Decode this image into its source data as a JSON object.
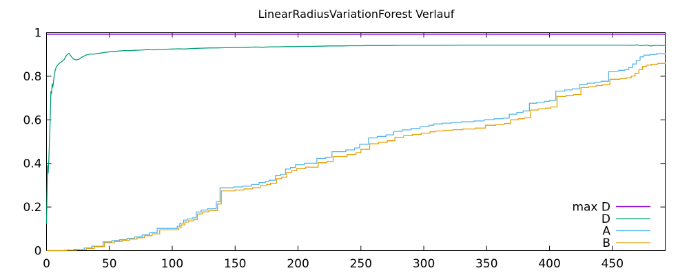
{
  "chart_data": {
    "type": "line",
    "title": "LinearRadiusVariationForest Verlauf",
    "xlabel": "",
    "ylabel": "",
    "xlim": [
      0,
      492
    ],
    "ylim": [
      0,
      1
    ],
    "xticks": [
      0,
      50,
      100,
      150,
      200,
      250,
      300,
      350,
      400,
      450
    ],
    "yticks": [
      0,
      0.2,
      0.4,
      0.6,
      0.8,
      1
    ],
    "grid": false,
    "background": "#ffffff",
    "axis_color": "#000000",
    "text_color": "#000000",
    "legend": {
      "position": "inside-bottom-right",
      "entries": [
        "max D",
        "D",
        "A",
        "B"
      ]
    },
    "series": [
      {
        "name": "max D",
        "color": "#9400d3",
        "style": "line",
        "points": [
          [
            0,
            0.993
          ],
          [
            492,
            0.993
          ]
        ]
      },
      {
        "name": "D",
        "color": "#009e73",
        "style": "line",
        "points": [
          [
            0,
            0.123
          ],
          [
            0.8,
            0.39
          ],
          [
            1.3,
            0.355
          ],
          [
            1.8,
            0.41
          ],
          [
            2.5,
            0.52
          ],
          [
            3,
            0.62
          ],
          [
            3.5,
            0.73
          ],
          [
            4,
            0.72
          ],
          [
            4.5,
            0.765
          ],
          [
            5,
            0.75
          ],
          [
            5.5,
            0.77
          ],
          [
            6,
            0.8
          ],
          [
            7,
            0.83
          ],
          [
            8,
            0.845
          ],
          [
            9,
            0.852
          ],
          [
            10,
            0.858
          ],
          [
            11,
            0.863
          ],
          [
            12,
            0.867
          ],
          [
            13,
            0.871
          ],
          [
            14,
            0.877
          ],
          [
            15,
            0.887
          ],
          [
            16,
            0.896
          ],
          [
            17,
            0.902
          ],
          [
            18,
            0.905
          ],
          [
            19,
            0.896
          ],
          [
            20,
            0.888
          ],
          [
            21,
            0.882
          ],
          [
            22,
            0.877
          ],
          [
            24,
            0.875
          ],
          [
            26,
            0.879
          ],
          [
            28,
            0.887
          ],
          [
            30,
            0.893
          ],
          [
            32,
            0.898
          ],
          [
            34,
            0.901
          ],
          [
            36,
            0.902
          ],
          [
            38,
            0.902
          ],
          [
            40,
            0.904
          ],
          [
            43,
            0.906
          ],
          [
            46,
            0.909
          ],
          [
            50,
            0.912
          ],
          [
            54,
            0.914
          ],
          [
            58,
            0.916
          ],
          [
            62,
            0.918
          ],
          [
            66,
            0.917
          ],
          [
            70,
            0.919
          ],
          [
            75,
            0.92
          ],
          [
            80,
            0.922
          ],
          [
            85,
            0.921
          ],
          [
            90,
            0.923
          ],
          [
            95,
            0.924
          ],
          [
            100,
            0.925
          ],
          [
            105,
            0.926
          ],
          [
            110,
            0.925
          ],
          [
            115,
            0.927
          ],
          [
            120,
            0.928
          ],
          [
            125,
            0.929
          ],
          [
            130,
            0.93
          ],
          [
            136,
            0.93
          ],
          [
            142,
            0.931
          ],
          [
            148,
            0.932
          ],
          [
            154,
            0.932
          ],
          [
            160,
            0.933
          ],
          [
            166,
            0.934
          ],
          [
            172,
            0.933
          ],
          [
            178,
            0.935
          ],
          [
            184,
            0.935
          ],
          [
            190,
            0.936
          ],
          [
            196,
            0.936
          ],
          [
            202,
            0.937
          ],
          [
            210,
            0.937
          ],
          [
            218,
            0.938
          ],
          [
            226,
            0.939
          ],
          [
            234,
            0.939
          ],
          [
            242,
            0.94
          ],
          [
            250,
            0.94
          ],
          [
            258,
            0.941
          ],
          [
            266,
            0.941
          ],
          [
            274,
            0.941
          ],
          [
            282,
            0.942
          ],
          [
            290,
            0.942
          ],
          [
            300,
            0.942
          ],
          [
            315,
            0.942
          ],
          [
            330,
            0.943
          ],
          [
            345,
            0.943
          ],
          [
            360,
            0.943
          ],
          [
            375,
            0.943
          ],
          [
            390,
            0.943
          ],
          [
            405,
            0.943
          ],
          [
            420,
            0.943
          ],
          [
            435,
            0.943
          ],
          [
            450,
            0.943
          ],
          [
            460,
            0.943
          ],
          [
            466,
            0.942
          ],
          [
            470,
            0.944
          ],
          [
            473,
            0.94
          ],
          [
            477,
            0.943
          ],
          [
            481,
            0.939
          ],
          [
            485,
            0.943
          ],
          [
            488,
            0.94
          ],
          [
            492,
            0.942
          ]
        ]
      },
      {
        "name": "A",
        "color": "#56b4e9",
        "style": "step",
        "points": [
          [
            0,
            0
          ],
          [
            14,
            0.002
          ],
          [
            22,
            0.006
          ],
          [
            30,
            0.012
          ],
          [
            36,
            0.02
          ],
          [
            45,
            0.04
          ],
          [
            52,
            0.046
          ],
          [
            58,
            0.05
          ],
          [
            64,
            0.056
          ],
          [
            70,
            0.063
          ],
          [
            76,
            0.072
          ],
          [
            82,
            0.082
          ],
          [
            88,
            0.102
          ],
          [
            104,
            0.112
          ],
          [
            106,
            0.126
          ],
          [
            109,
            0.14
          ],
          [
            112,
            0.145
          ],
          [
            116,
            0.15
          ],
          [
            119,
            0.177
          ],
          [
            123,
            0.186
          ],
          [
            128,
            0.192
          ],
          [
            135,
            0.224
          ],
          [
            138,
            0.288
          ],
          [
            149,
            0.292
          ],
          [
            156,
            0.296
          ],
          [
            163,
            0.303
          ],
          [
            169,
            0.312
          ],
          [
            174,
            0.317
          ],
          [
            177,
            0.323
          ],
          [
            182,
            0.344
          ],
          [
            186,
            0.35
          ],
          [
            190,
            0.374
          ],
          [
            194,
            0.381
          ],
          [
            198,
            0.394
          ],
          [
            205,
            0.401
          ],
          [
            215,
            0.423
          ],
          [
            222,
            0.428
          ],
          [
            227,
            0.454
          ],
          [
            238,
            0.462
          ],
          [
            245,
            0.471
          ],
          [
            249,
            0.488
          ],
          [
            256,
            0.517
          ],
          [
            263,
            0.524
          ],
          [
            270,
            0.531
          ],
          [
            276,
            0.547
          ],
          [
            283,
            0.554
          ],
          [
            290,
            0.561
          ],
          [
            297,
            0.568
          ],
          [
            304,
            0.575
          ],
          [
            308,
            0.581
          ],
          [
            315,
            0.585
          ],
          [
            322,
            0.588
          ],
          [
            330,
            0.591
          ],
          [
            340,
            0.595
          ],
          [
            348,
            0.601
          ],
          [
            356,
            0.605
          ],
          [
            363,
            0.608
          ],
          [
            368,
            0.626
          ],
          [
            374,
            0.634
          ],
          [
            379,
            0.641
          ],
          [
            384,
            0.676
          ],
          [
            390,
            0.681
          ],
          [
            396,
            0.685
          ],
          [
            400,
            0.689
          ],
          [
            405,
            0.732
          ],
          [
            412,
            0.737
          ],
          [
            418,
            0.742
          ],
          [
            424,
            0.763
          ],
          [
            430,
            0.768
          ],
          [
            436,
            0.773
          ],
          [
            441,
            0.777
          ],
          [
            447,
            0.823
          ],
          [
            455,
            0.827
          ],
          [
            460,
            0.831
          ],
          [
            463,
            0.84
          ],
          [
            466,
            0.856
          ],
          [
            469,
            0.873
          ],
          [
            472,
            0.889
          ],
          [
            475,
            0.897
          ],
          [
            480,
            0.9
          ],
          [
            485,
            0.903
          ],
          [
            492,
            0.906
          ]
        ]
      },
      {
        "name": "B",
        "color": "#e69f00",
        "style": "step",
        "points": [
          [
            0,
            0
          ],
          [
            16,
            0.002
          ],
          [
            24,
            0.005
          ],
          [
            32,
            0.01
          ],
          [
            38,
            0.018
          ],
          [
            46,
            0.036
          ],
          [
            54,
            0.042
          ],
          [
            60,
            0.047
          ],
          [
            66,
            0.053
          ],
          [
            72,
            0.059
          ],
          [
            78,
            0.068
          ],
          [
            84,
            0.077
          ],
          [
            90,
            0.095
          ],
          [
            105,
            0.104
          ],
          [
            107,
            0.118
          ],
          [
            110,
            0.131
          ],
          [
            113,
            0.137
          ],
          [
            117,
            0.142
          ],
          [
            120,
            0.168
          ],
          [
            124,
            0.178
          ],
          [
            129,
            0.184
          ],
          [
            136,
            0.214
          ],
          [
            139,
            0.274
          ],
          [
            150,
            0.278
          ],
          [
            157,
            0.283
          ],
          [
            164,
            0.289
          ],
          [
            170,
            0.298
          ],
          [
            175,
            0.303
          ],
          [
            178,
            0.309
          ],
          [
            183,
            0.33
          ],
          [
            187,
            0.337
          ],
          [
            191,
            0.359
          ],
          [
            195,
            0.367
          ],
          [
            199,
            0.376
          ],
          [
            206,
            0.383
          ],
          [
            216,
            0.403
          ],
          [
            223,
            0.409
          ],
          [
            228,
            0.432
          ],
          [
            239,
            0.441
          ],
          [
            246,
            0.449
          ],
          [
            250,
            0.465
          ],
          [
            257,
            0.49
          ],
          [
            264,
            0.497
          ],
          [
            271,
            0.504
          ],
          [
            277,
            0.52
          ],
          [
            284,
            0.527
          ],
          [
            291,
            0.533
          ],
          [
            298,
            0.539
          ],
          [
            305,
            0.545
          ],
          [
            309,
            0.549
          ],
          [
            316,
            0.552
          ],
          [
            323,
            0.555
          ],
          [
            331,
            0.558
          ],
          [
            341,
            0.562
          ],
          [
            349,
            0.575
          ],
          [
            357,
            0.579
          ],
          [
            364,
            0.583
          ],
          [
            369,
            0.6
          ],
          [
            375,
            0.605
          ],
          [
            380,
            0.609
          ],
          [
            385,
            0.645
          ],
          [
            391,
            0.65
          ],
          [
            397,
            0.654
          ],
          [
            401,
            0.659
          ],
          [
            406,
            0.707
          ],
          [
            413,
            0.712
          ],
          [
            419,
            0.716
          ],
          [
            425,
            0.748
          ],
          [
            431,
            0.752
          ],
          [
            437,
            0.757
          ],
          [
            442,
            0.761
          ],
          [
            448,
            0.786
          ],
          [
            456,
            0.789
          ],
          [
            461,
            0.793
          ],
          [
            465,
            0.801
          ],
          [
            468,
            0.814
          ],
          [
            471,
            0.83
          ],
          [
            474,
            0.845
          ],
          [
            477,
            0.851
          ],
          [
            481,
            0.855
          ],
          [
            486,
            0.859
          ],
          [
            492,
            0.864
          ]
        ]
      }
    ]
  }
}
